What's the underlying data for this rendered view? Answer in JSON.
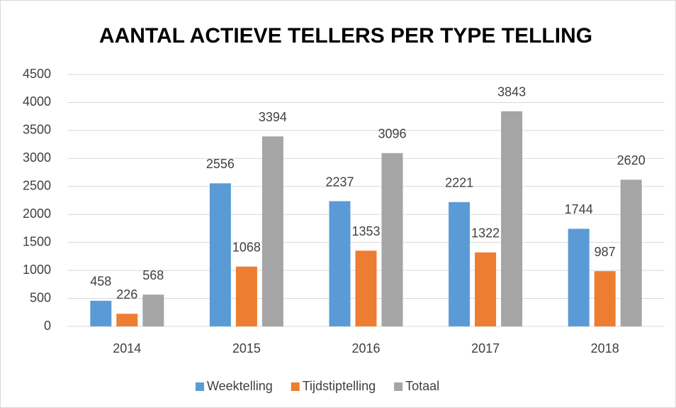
{
  "chart_data": {
    "type": "bar",
    "title": "AANTAL ACTIEVE TELLERS PER TYPE TELLING",
    "categories": [
      "2014",
      "2015",
      "2016",
      "2017",
      "2018"
    ],
    "series": [
      {
        "name": "Weektelling",
        "color": "#5b9bd5",
        "values": [
          458,
          2556,
          2237,
          2221,
          1744
        ]
      },
      {
        "name": "Tijdstiptelling",
        "color": "#ed7d31",
        "values": [
          226,
          1068,
          1353,
          1322,
          987
        ]
      },
      {
        "name": "Totaal",
        "color": "#a5a5a5",
        "values": [
          568,
          3394,
          3096,
          3843,
          2620
        ]
      }
    ],
    "ylim": [
      0,
      4500
    ],
    "yticks": [
      0,
      500,
      1000,
      1500,
      2000,
      2500,
      3000,
      3500,
      4000,
      4500
    ],
    "grid": true,
    "legend": "bottom"
  }
}
